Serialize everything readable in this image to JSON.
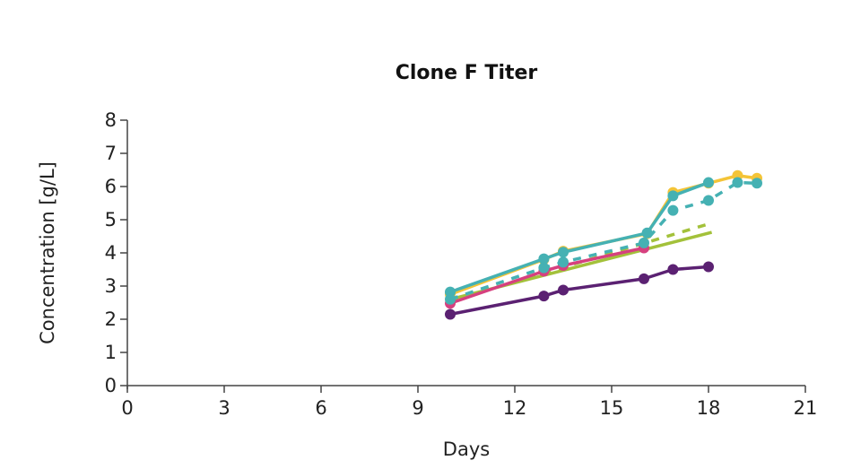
{
  "chart_data": {
    "type": "line",
    "title": "Clone F Titer",
    "xlabel": "Days",
    "ylabel": "Concentration [g/L]",
    "xlim": [
      0,
      21
    ],
    "ylim": [
      0,
      8
    ],
    "xticks": [
      0,
      3,
      6,
      9,
      12,
      15,
      18,
      21
    ],
    "yticks": [
      0,
      1,
      2,
      3,
      4,
      5,
      6,
      7,
      8
    ],
    "grid": false,
    "legend": null,
    "series": [
      {
        "name": "green-dashed",
        "color": "#a3c13a",
        "dashed": true,
        "markers": false,
        "x": [
          10,
          18.1
        ],
        "y": [
          2.55,
          4.9
        ]
      },
      {
        "name": "green-solid",
        "color": "#a3c13a",
        "dashed": false,
        "markers": false,
        "x": [
          10,
          18.1
        ],
        "y": [
          2.6,
          4.62
        ]
      },
      {
        "name": "pink",
        "color": "#d6407f",
        "dashed": false,
        "markers": true,
        "x": [
          10,
          12.9,
          13.5,
          16
        ],
        "y": [
          2.48,
          3.45,
          3.62,
          4.15
        ]
      },
      {
        "name": "purple",
        "color": "#5b2172",
        "dashed": false,
        "markers": true,
        "x": [
          10,
          12.9,
          13.5,
          16,
          16.9,
          18
        ],
        "y": [
          2.15,
          2.7,
          2.88,
          3.22,
          3.5,
          3.58
        ]
      },
      {
        "name": "yellow",
        "color": "#f4c437",
        "dashed": false,
        "markers": true,
        "x": [
          10,
          12.9,
          13.5,
          16.1,
          16.9,
          18,
          18.9,
          19.5
        ],
        "y": [
          2.75,
          3.8,
          4.05,
          4.58,
          5.82,
          6.1,
          6.33,
          6.25
        ]
      },
      {
        "name": "teal-dashed",
        "color": "#45b1b3",
        "dashed": true,
        "markers": true,
        "x": [
          10,
          12.9,
          13.5,
          16,
          16.9,
          18,
          18.9,
          19.5
        ],
        "y": [
          2.6,
          3.55,
          3.72,
          4.3,
          5.28,
          5.58,
          6.12,
          6.1
        ]
      },
      {
        "name": "teal-solid",
        "color": "#45b1b3",
        "dashed": false,
        "markers": true,
        "x": [
          10,
          12.9,
          13.5,
          16.1,
          16.9,
          18
        ],
        "y": [
          2.82,
          3.82,
          4.02,
          4.6,
          5.72,
          6.12
        ]
      }
    ]
  }
}
